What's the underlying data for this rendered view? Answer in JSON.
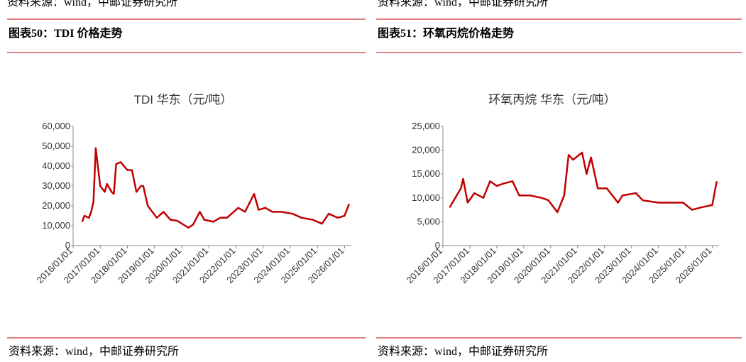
{
  "top_sources": [
    "资料来源：wind，中邮证券研究所",
    "资料来源：wind，中邮证券研究所"
  ],
  "captions": [
    "图表50：TDI 价格走势",
    "图表51：环氧丙烷价格走势"
  ],
  "sources": [
    "资料来源：wind，中邮证券研究所",
    "资料来源：wind，中邮证券研究所"
  ],
  "chart_data": [
    {
      "type": "line",
      "title": "TDI 华东（元/吨）",
      "x": [
        "2016/05/01",
        "2016/06/01",
        "2016/08/01",
        "2016/09/01",
        "2016/10/01",
        "2016/11/01",
        "2017/01/01",
        "2017/03/01",
        "2017/04/01",
        "2017/06/01",
        "2017/07/01",
        "2017/08/01",
        "2017/10/01",
        "2018/01/01",
        "2018/03/01",
        "2018/05/01",
        "2018/07/01",
        "2018/08/01",
        "2018/10/01",
        "2018/12/01",
        "2019/02/01",
        "2019/05/01",
        "2019/08/01",
        "2019/11/01",
        "2020/04/01",
        "2020/06/01",
        "2020/09/01",
        "2020/11/01",
        "2021/03/01",
        "2021/06/01",
        "2021/09/01",
        "2022/02/01",
        "2022/05/01",
        "2022/09/01",
        "2022/11/01",
        "2023/02/01",
        "2023/05/01",
        "2023/09/01",
        "2024/02/01",
        "2024/06/01",
        "2024/11/01",
        "2025/03/01",
        "2025/06/01",
        "2025/10/01",
        "2026/01/01",
        "2026/03/01"
      ],
      "series": [
        {
          "name": "TDI 华东",
          "color": "#c00000",
          "values": [
            12000,
            15000,
            14000,
            17000,
            22000,
            49000,
            30000,
            27000,
            31000,
            27000,
            26000,
            41000,
            42000,
            38000,
            38000,
            27000,
            30000,
            30000,
            20000,
            17000,
            14000,
            17000,
            13000,
            12500,
            9000,
            10500,
            17000,
            13000,
            12000,
            14000,
            14000,
            19000,
            17000,
            26000,
            18000,
            19000,
            17000,
            17000,
            16000,
            14000,
            13000,
            11000,
            16000,
            14000,
            15000,
            21000
          ]
        }
      ],
      "xlim": [
        "2016/01/01",
        "2026/04/01"
      ],
      "xticks": [
        "2016/01/01",
        "2017/01/01",
        "2018/01/01",
        "2019/01/01",
        "2020/01/01",
        "2021/01/01",
        "2022/01/01",
        "2023/01/01",
        "2024/01/01",
        "2025/01/01",
        "2026/01/01"
      ],
      "ylim": [
        0,
        60000
      ],
      "yticks": [
        0,
        {
          "value": 10000,
          "label": "10,000"
        },
        {
          "value": 20000,
          "label": "20,000"
        },
        {
          "value": 30000,
          "label": "30,000"
        },
        {
          "value": 40000,
          "label": "40,000"
        },
        {
          "value": 50000,
          "label": "50,000"
        },
        {
          "value": 60000,
          "label": "60,000"
        }
      ],
      "grid": false
    },
    {
      "type": "line",
      "title": "环氧丙烷 华东（元/吨）",
      "x": [
        "2016/04/01",
        "2016/09/01",
        "2016/10/01",
        "2016/12/01",
        "2017/03/01",
        "2017/07/01",
        "2017/10/01",
        "2018/01/01",
        "2018/04/01",
        "2018/08/01",
        "2018/11/01",
        "2019/04/01",
        "2019/09/01",
        "2019/12/01",
        "2020/04/01",
        "2020/07/01",
        "2020/09/01",
        "2020/11/01",
        "2021/03/01",
        "2021/05/01",
        "2021/07/01",
        "2021/10/01",
        "2022/02/01",
        "2022/07/01",
        "2022/09/01",
        "2023/03/01",
        "2023/06/01",
        "2024/01/01",
        "2024/12/01",
        "2025/04/01",
        "2025/08/01",
        "2026/01/01",
        "2026/03/01"
      ],
      "series": [
        {
          "name": "环氧丙烷 华东",
          "color": "#c00000",
          "values": [
            8000,
            12000,
            14000,
            9000,
            11000,
            10000,
            13500,
            12500,
            13000,
            13500,
            10500,
            10500,
            10000,
            9500,
            7000,
            10500,
            19000,
            18000,
            19500,
            15000,
            18500,
            12000,
            12000,
            9000,
            10500,
            11000,
            9500,
            9000,
            9000,
            7500,
            8000,
            8500,
            13500
          ]
        }
      ],
      "xlim": [
        "2016/01/01",
        "2026/04/01"
      ],
      "xticks": [
        "2016/01/01",
        "2017/01/01",
        "2018/01/01",
        "2019/01/01",
        "2020/01/01",
        "2021/01/01",
        "2022/01/01",
        "2023/01/01",
        "2024/01/01",
        "2025/01/01",
        "2026/01/01"
      ],
      "ylim": [
        0,
        25000
      ],
      "yticks": [
        0,
        {
          "value": 5000,
          "label": "5,000"
        },
        {
          "value": 10000,
          "label": "10,000"
        },
        {
          "value": 15000,
          "label": "15,000"
        },
        {
          "value": 20000,
          "label": "20,000"
        },
        {
          "value": 25000,
          "label": "25,000"
        }
      ],
      "grid": false
    }
  ]
}
